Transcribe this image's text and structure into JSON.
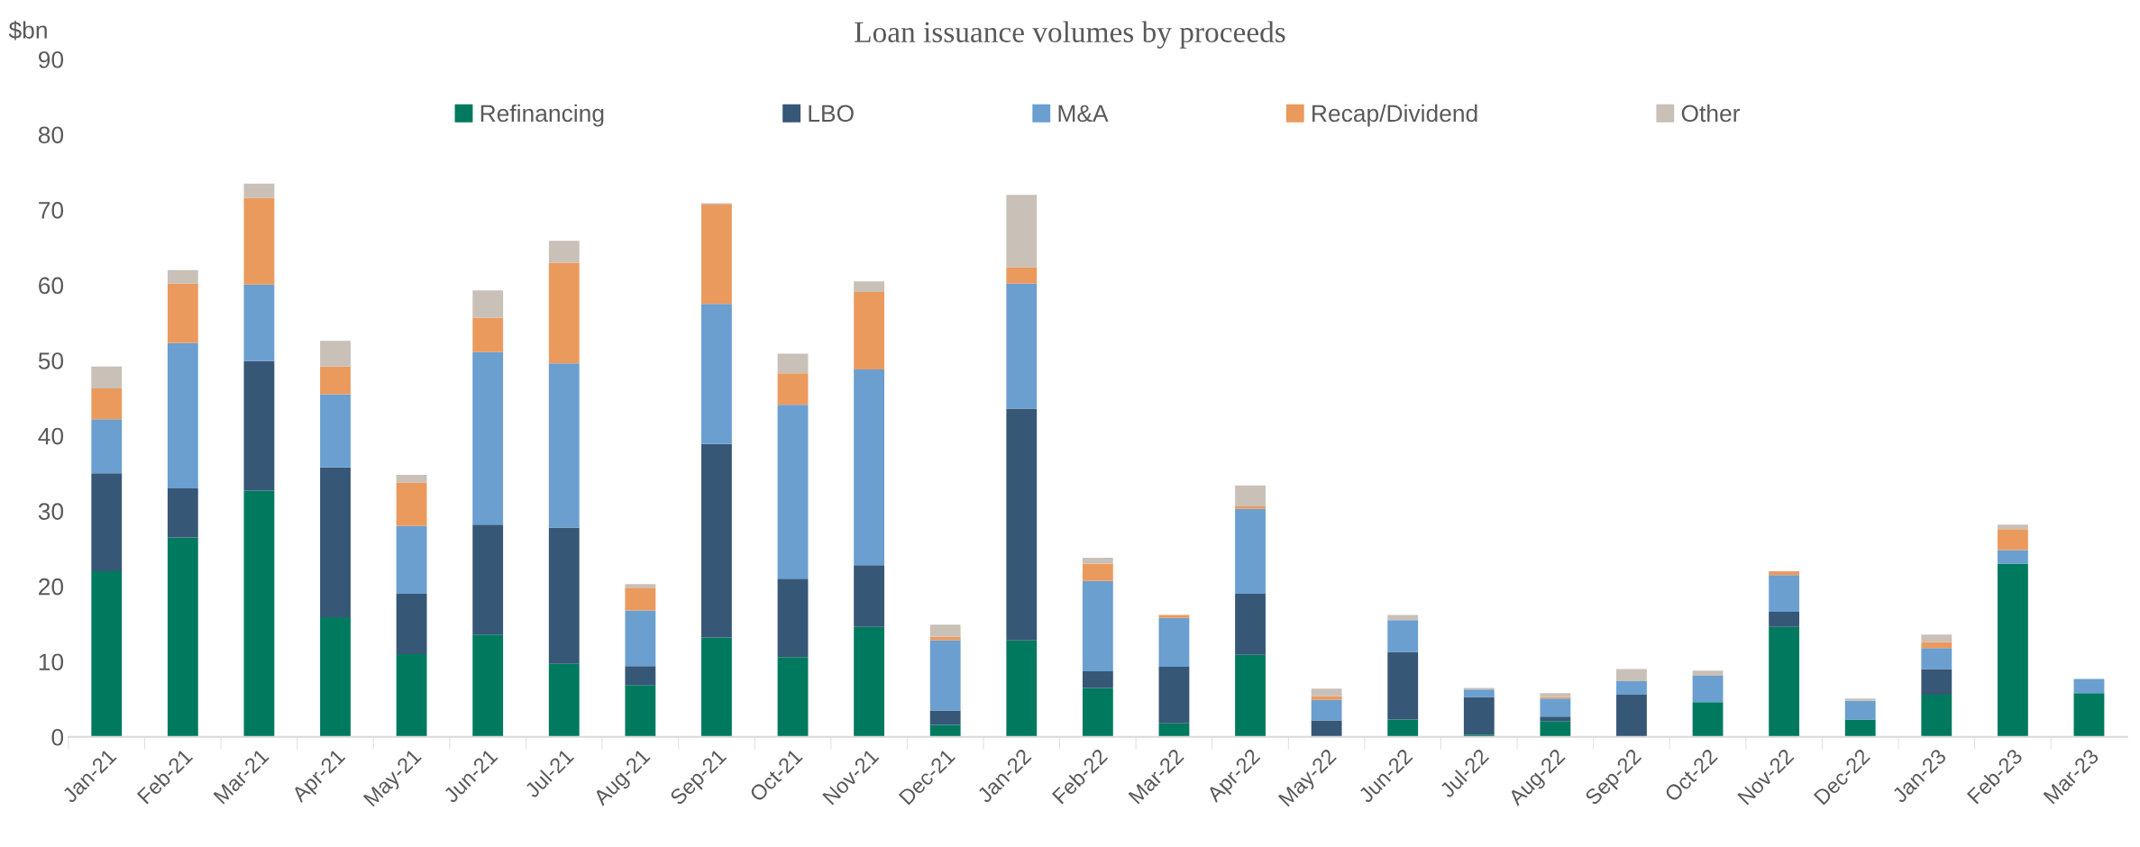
{
  "chart_data": {
    "type": "bar",
    "title": "Loan issuance volumes by proceeds",
    "ylabel": "$bn",
    "stacked": true,
    "categories": [
      "Jan-21",
      "Feb-21",
      "Mar-21",
      "Apr-21",
      "May-21",
      "Jun-21",
      "Jul-21",
      "Aug-21",
      "Sep-21",
      "Oct-21",
      "Nov-21",
      "Dec-21",
      "Jan-22",
      "Feb-22",
      "Mar-22",
      "Apr-22",
      "May-22",
      "Jun-22",
      "Jul-22",
      "Aug-22",
      "Sep-22",
      "Oct-22",
      "Nov-22",
      "Dec-22",
      "Jan-23",
      "Feb-23",
      "Mar-23"
    ],
    "series": [
      {
        "name": "Refinancing",
        "color": "#007a5e",
        "values": [
          22,
          26.5,
          32.7,
          15.9,
          11,
          13.6,
          9.7,
          6.9,
          13.2,
          10.6,
          14.6,
          1.6,
          12.8,
          6.5,
          1.8,
          10.9,
          0,
          2.3,
          0.3,
          2.1,
          0,
          4.6,
          14.6,
          2.3,
          5.6,
          23,
          5.8
        ]
      },
      {
        "name": "LBO",
        "color": "#375777",
        "values": [
          13,
          6.5,
          17.2,
          19.9,
          8,
          14.6,
          18.1,
          2.5,
          25.7,
          10.4,
          8.2,
          1.9,
          30.8,
          2.2,
          7.5,
          8.1,
          2.2,
          9,
          5,
          0.6,
          5.6,
          0,
          2,
          0,
          3.4,
          0,
          0
        ]
      },
      {
        "name": "M&A",
        "color": "#6a9fd0",
        "values": [
          7.2,
          19.3,
          10.2,
          9.7,
          9,
          22.9,
          21.8,
          7.4,
          18.6,
          23.1,
          26,
          9.3,
          16.6,
          12,
          6.5,
          11.3,
          2.7,
          4.2,
          1,
          2.4,
          1.8,
          3.5,
          4.9,
          2.5,
          2.8,
          1.8,
          1.9
        ]
      },
      {
        "name": "Recap/Dividend",
        "color": "#eb9a5e",
        "values": [
          4.1,
          7.9,
          11.5,
          3.7,
          5.8,
          4.6,
          13.4,
          3,
          13.2,
          4.2,
          10.3,
          0.5,
          2.2,
          2.3,
          0.4,
          0.3,
          0.5,
          null,
          0,
          0.2,
          0,
          0,
          0.5,
          0,
          0.8,
          2.8,
          0
        ]
      },
      {
        "name": "Other",
        "color": "#c9c0b8",
        "values": [
          2.9,
          1.8,
          1.9,
          3.4,
          1,
          3.6,
          2.9,
          0.5,
          0.2,
          2.6,
          1.4,
          1.6,
          9.6,
          0.8,
          null,
          2.8,
          1,
          0.7,
          0.2,
          0.5,
          1.6,
          0.7,
          0,
          0.3,
          1,
          0.6,
          0
        ]
      }
    ],
    "ylim": [
      0,
      90
    ],
    "yticks": [
      0,
      10,
      20,
      30,
      40,
      50,
      60,
      70,
      80,
      90
    ],
    "grid": false,
    "legend": "top"
  }
}
